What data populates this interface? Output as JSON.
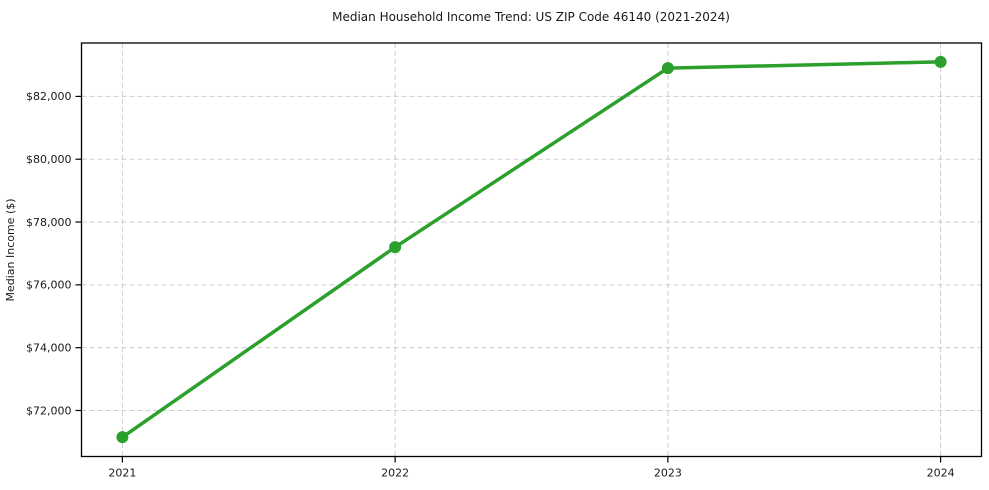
{
  "chart_data": {
    "type": "line",
    "title": "Median Household Income Trend: US ZIP Code 46140 (2021-2024)",
    "xlabel": "",
    "ylabel": "Median Income ($)",
    "categories": [
      "2021",
      "2022",
      "2023",
      "2024"
    ],
    "x": [
      2021,
      2022,
      2023,
      2024
    ],
    "values": [
      71150,
      77200,
      82900,
      83100
    ],
    "ylim": [
      70535,
      83700
    ],
    "yticks": [
      72000,
      74000,
      76000,
      78000,
      80000,
      82000
    ],
    "ytick_labels": [
      "$72,000",
      "$74,000",
      "$76,000",
      "$78,000",
      "$80,000",
      "$82,000"
    ],
    "grid": true,
    "grid_style": "dashed",
    "grid_color": "#cdcdcd",
    "legend": "none",
    "line_color": "#2ca02c",
    "marker": "circle",
    "marker_color": "#2ca02c",
    "background_color": "#ffffff",
    "border_color": "#000000"
  }
}
